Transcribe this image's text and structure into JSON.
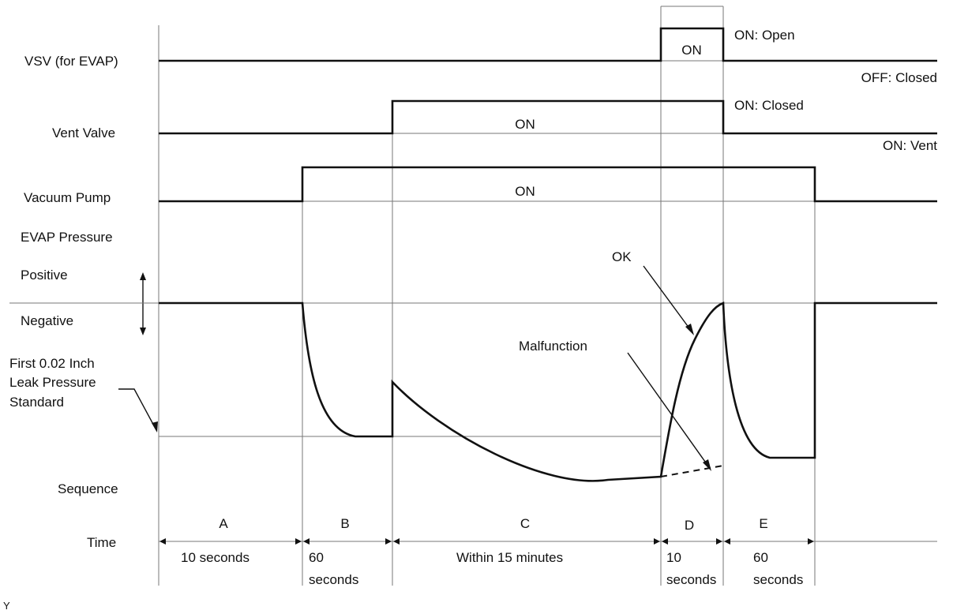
{
  "signals": {
    "vsv": {
      "label": "VSV (for EVAP)",
      "on_text": "ON",
      "state_on": "ON: Open",
      "state_off": "OFF: Closed"
    },
    "vent": {
      "label": "Vent Valve",
      "on_text": "ON",
      "state_on": "ON: Closed",
      "state_off": "ON: Vent"
    },
    "pump": {
      "label": "Vacuum Pump",
      "on_text": "ON"
    }
  },
  "pressure": {
    "label": "EVAP Pressure",
    "positive": "Positive",
    "negative": "Negative",
    "standard_line1": "First 0.02 Inch",
    "standard_line2": "Leak Pressure",
    "standard_line3": "Standard",
    "ok": "OK",
    "malfunction": "Malfunction"
  },
  "sequence": {
    "label": "Sequence",
    "time_label": "Time",
    "phases": [
      {
        "letter": "A",
        "duration_line1": "10 seconds",
        "duration_line2": ""
      },
      {
        "letter": "B",
        "duration_line1": "60",
        "duration_line2": "seconds"
      },
      {
        "letter": "C",
        "duration_line1": "Within 15 minutes",
        "duration_line2": ""
      },
      {
        "letter": "D",
        "duration_line1": "10",
        "duration_line2": "seconds"
      },
      {
        "letter": "E",
        "duration_line1": "60",
        "duration_line2": "seconds"
      }
    ]
  },
  "footer_mark": "Y"
}
